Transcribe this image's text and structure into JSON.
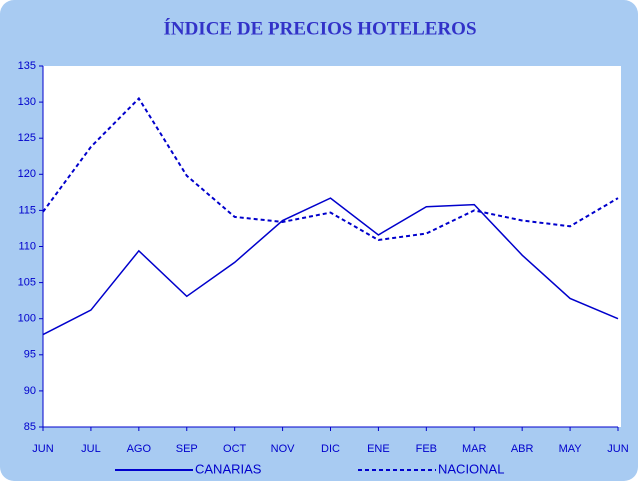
{
  "chart_data": {
    "type": "line",
    "title": "ÍNDICE DE PRECIOS HOTELEROS",
    "categories": [
      "JUN",
      "JUL",
      "AGO",
      "SEP",
      "OCT",
      "NOV",
      "DIC",
      "ENE",
      "FEB",
      "MAR",
      "ABR",
      "MAY",
      "JUN"
    ],
    "series": [
      {
        "name": "CANARIAS",
        "color": "#0000cc",
        "dash": "solid",
        "values": [
          97.8,
          101.2,
          109.4,
          103.1,
          107.8,
          113.6,
          116.7,
          111.6,
          115.5,
          115.8,
          108.8,
          102.8,
          100.0
        ]
      },
      {
        "name": "NACIONAL",
        "color": "#0000cc",
        "dash": "dashed",
        "values": [
          114.8,
          123.8,
          130.5,
          119.8,
          114.1,
          113.4,
          114.7,
          110.9,
          111.8,
          115.0,
          113.6,
          112.8,
          116.7
        ]
      }
    ],
    "ylim": [
      85,
      135
    ],
    "yticks": [
      85,
      90,
      95,
      100,
      105,
      110,
      115,
      120,
      125,
      130,
      135
    ],
    "grid": false,
    "legend": "bottom"
  }
}
